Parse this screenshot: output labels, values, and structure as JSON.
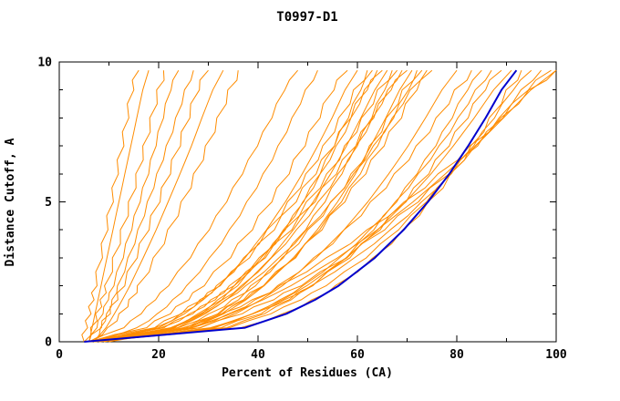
{
  "title": "T0997-D1",
  "colors": {
    "model_line": "#FF8C00",
    "highlight_line": "#0000CD",
    "axis": "#000000",
    "background": "#FFFFFF"
  },
  "chart_data": {
    "type": "line",
    "title": "T0997-D1",
    "xlabel": "Percent of Residues (CA)",
    "ylabel": "Distance Cutoff, A",
    "xlim": [
      0,
      100
    ],
    "ylim": [
      0,
      10
    ],
    "x_major_ticks": [
      0,
      20,
      40,
      60,
      80,
      100
    ],
    "x_minor_step": 10,
    "y_major_ticks": [
      0,
      5,
      10
    ],
    "y_minor_step": 1,
    "grid": false,
    "legend": "none",
    "cutoffs": [
      0,
      0.5,
      1,
      1.5,
      2,
      3,
      4,
      5,
      6,
      7,
      8,
      9,
      9.7
    ],
    "series": [
      {
        "name": "m01",
        "color": "#FF8C00",
        "x": [
          5,
          5.7,
          6.4,
          7,
          7.6,
          8.7,
          9.8,
          10.9,
          11.9,
          13,
          14,
          15,
          16
        ]
      },
      {
        "name": "m02",
        "color": "#FF8C00",
        "x": [
          6,
          6.6,
          7.2,
          7.8,
          8.4,
          9.6,
          10.8,
          12,
          13.2,
          14.4,
          15.6,
          16.8,
          18
        ]
      },
      {
        "name": "m03",
        "color": "#FF8C00",
        "x": [
          5,
          6.3,
          7.3,
          8.2,
          9.1,
          10.7,
          12.3,
          13.9,
          15.4,
          16.8,
          18.2,
          19.6,
          21
        ]
      },
      {
        "name": "m04",
        "color": "#FF8C00",
        "x": [
          6,
          7.6,
          8.8,
          9.9,
          11,
          12.9,
          14.6,
          16.3,
          18,
          19.5,
          21,
          22.5,
          24
        ]
      },
      {
        "name": "m05",
        "color": "#FF8C00",
        "x": [
          7,
          8.3,
          9.5,
          10.6,
          11.7,
          13.8,
          15.8,
          17.7,
          19.6,
          21.5,
          23.4,
          25.2,
          27
        ]
      },
      {
        "name": "m06",
        "color": "#FF8C00",
        "x": [
          6,
          8.5,
          10.3,
          11.8,
          13.2,
          15.7,
          18.1,
          20.3,
          22.4,
          24.4,
          26.3,
          28.2,
          30
        ]
      },
      {
        "name": "m07",
        "color": "#FF8C00",
        "x": [
          7,
          9.4,
          11.1,
          12.7,
          14.2,
          16.9,
          19.5,
          21.9,
          24.3,
          26.6,
          28.7,
          30.9,
          33
        ]
      },
      {
        "name": "m08",
        "color": "#FF8C00",
        "x": [
          6,
          9.7,
          12,
          14,
          15.7,
          18.9,
          21.8,
          24.5,
          27,
          29.4,
          31.7,
          33.9,
          36
        ]
      },
      {
        "name": "m09",
        "color": "#FF8C00",
        "x": [
          6,
          13,
          16.5,
          19.4,
          22,
          26.4,
          30.2,
          33.7,
          36.9,
          39.9,
          42.8,
          45.4,
          48
        ]
      },
      {
        "name": "m10",
        "color": "#FF8C00",
        "x": [
          7,
          15.6,
          19.7,
          22.8,
          25.6,
          30.2,
          34.2,
          37.7,
          41,
          44,
          46.8,
          49.5,
          52
        ]
      },
      {
        "name": "m11",
        "color": "#FF8C00",
        "x": [
          6,
          17.6,
          22.4,
          26.1,
          29.2,
          34.5,
          38.9,
          42.8,
          46.3,
          49.5,
          52.5,
          55.3,
          58
        ]
      },
      {
        "name": "m12",
        "color": "#FF8C00",
        "x": [
          6,
          20,
          25.2,
          29,
          32.2,
          37.4,
          41.7,
          45.5,
          48.9,
          52,
          54.9,
          57.5,
          60
        ]
      },
      {
        "name": "m13",
        "color": "#FF8C00",
        "x": [
          7,
          19.3,
          24.4,
          28.3,
          31.6,
          37.1,
          41.8,
          45.9,
          49.6,
          53,
          56.2,
          59.2,
          62
        ]
      },
      {
        "name": "m14",
        "color": "#FF8C00",
        "x": [
          6,
          23.2,
          28.7,
          32.7,
          35.9,
          41.2,
          45.5,
          49.2,
          52.5,
          55.4,
          58.2,
          60.7,
          63
        ]
      },
      {
        "name": "m15",
        "color": "#FF8C00",
        "x": [
          8,
          22.6,
          27.9,
          31.9,
          35.2,
          40.6,
          45.1,
          49,
          52.5,
          55.7,
          58.7,
          61.4,
          64
        ]
      },
      {
        "name": "m16",
        "color": "#FF8C00",
        "x": [
          6,
          19.2,
          24.6,
          28.8,
          32.4,
          38.3,
          43.3,
          47.7,
          51.7,
          55.4,
          58.7,
          62,
          65
        ]
      },
      {
        "name": "m17",
        "color": "#FF8C00",
        "x": [
          7,
          23.8,
          29.4,
          33.6,
          37,
          42.6,
          47.1,
          51.1,
          54.6,
          57.8,
          60.7,
          63.5,
          66
        ]
      },
      {
        "name": "m18",
        "color": "#FF8C00",
        "x": [
          6,
          20.5,
          26.2,
          30.5,
          34.2,
          40.2,
          45.3,
          49.7,
          53.8,
          57.4,
          60.8,
          64,
          67
        ]
      },
      {
        "name": "m19",
        "color": "#FF8C00",
        "x": [
          8,
          26.1,
          31.9,
          36.1,
          39.5,
          45.1,
          49.6,
          53.5,
          56.9,
          60,
          62.9,
          65.5,
          68
        ]
      },
      {
        "name": "m20",
        "color": "#FF8C00",
        "x": [
          6,
          22.4,
          28.4,
          32.8,
          36.6,
          42.7,
          47.7,
          52.1,
          56.1,
          59.7,
          63,
          66.1,
          69
        ]
      },
      {
        "name": "m21",
        "color": "#FF8C00",
        "x": [
          7,
          21.1,
          26.9,
          31.4,
          35.2,
          41.5,
          46.8,
          51.5,
          55.8,
          59.7,
          63.3,
          66.8,
          70
        ]
      },
      {
        "name": "m22",
        "color": "#FF8C00",
        "x": [
          6,
          26.8,
          33.1,
          37.6,
          41.2,
          47.1,
          51.9,
          56,
          59.6,
          62.7,
          65.7,
          68.5,
          71
        ]
      },
      {
        "name": "m23",
        "color": "#FF8C00",
        "x": [
          7,
          23.9,
          30.1,
          34.7,
          38.5,
          44.8,
          50,
          54.6,
          58.7,
          62.4,
          65.8,
          69,
          72
        ]
      },
      {
        "name": "m24",
        "color": "#FF8C00",
        "x": [
          6,
          26.2,
          32.7,
          37.4,
          41.2,
          47.4,
          52.4,
          56.8,
          60.6,
          64.1,
          67.3,
          70.3,
          73
        ]
      },
      {
        "name": "m25",
        "color": "#FF8C00",
        "x": [
          8,
          22.8,
          28.9,
          33.5,
          37.5,
          44.2,
          49.7,
          54.7,
          59.2,
          63.2,
          67,
          70.6,
          74
        ]
      },
      {
        "name": "m26",
        "color": "#FF8C00",
        "x": [
          6,
          25.6,
          32.2,
          37.1,
          41.1,
          47.6,
          52.9,
          57.5,
          61.7,
          65.4,
          68.9,
          72,
          75
        ]
      },
      {
        "name": "m27",
        "color": "#FF8C00",
        "x": [
          6,
          28.3,
          35.5,
          40.6,
          44.9,
          51.7,
          57.3,
          62.1,
          66.3,
          70.2,
          73.7,
          77,
          80
        ]
      },
      {
        "name": "m28",
        "color": "#FF8C00",
        "x": [
          7,
          26.8,
          34,
          39.4,
          43.9,
          51.2,
          57.3,
          62.6,
          67.4,
          71.8,
          75.8,
          79.5,
          83
        ]
      },
      {
        "name": "m29",
        "color": "#FF8C00",
        "x": [
          6,
          33.7,
          41.3,
          46.7,
          51,
          57.8,
          63.3,
          67.9,
          72,
          75.8,
          79.1,
          82.2,
          85
        ]
      },
      {
        "name": "m30",
        "color": "#FF8C00",
        "x": [
          7,
          31.2,
          38.8,
          44.4,
          49,
          56.4,
          62.4,
          67.6,
          72.2,
          76.4,
          80.2,
          83.7,
          87
        ]
      },
      {
        "name": "m31",
        "color": "#FF8C00",
        "x": [
          6,
          32.6,
          40.6,
          46.3,
          51,
          58.5,
          64.6,
          69.8,
          74.4,
          78.5,
          82.3,
          85.8,
          89
        ]
      },
      {
        "name": "m32",
        "color": "#FF8C00",
        "x": [
          7,
          30.9,
          38.9,
          44.9,
          49.8,
          57.7,
          64.1,
          69.7,
          74.8,
          79.3,
          83.5,
          87.4,
          91
        ]
      },
      {
        "name": "m33",
        "color": "#FF8C00",
        "x": [
          6,
          36.5,
          44.9,
          50.8,
          55.5,
          63.1,
          69.1,
          74.2,
          78.7,
          82.8,
          86.5,
          89.9,
          93
        ]
      },
      {
        "name": "m34",
        "color": "#FF8C00",
        "x": [
          8,
          34.3,
          42.6,
          48.7,
          53.7,
          61.8,
          68.3,
          73.9,
          78.9,
          83.4,
          87.6,
          91.4,
          95
        ]
      },
      {
        "name": "m35",
        "color": "#FF8C00",
        "x": [
          7,
          30.4,
          39,
          45.3,
          50.7,
          59.4,
          66.6,
          72.9,
          78.6,
          83.7,
          88.5,
          92.9,
          97
        ]
      },
      {
        "name": "m36",
        "color": "#FF8C00",
        "x": [
          8,
          28.4,
          36.8,
          43.2,
          48.7,
          57.9,
          65.5,
          72.3,
          78.5,
          84.2,
          89.3,
          94.4,
          99
        ]
      },
      {
        "name": "m37",
        "color": "#FF8C00",
        "x": [
          9,
          26.5,
          34.7,
          41,
          46.6,
          56,
          64,
          71.2,
          77.7,
          83.8,
          89.4,
          94.9,
          100
        ]
      },
      {
        "name": "m38",
        "color": "#FF8C00",
        "x": [
          10,
          24.9,
          32.6,
          38.8,
          44.3,
          53.7,
          61.9,
          69.4,
          76.2,
          82.6,
          88.8,
          94.5,
          100
        ]
      },
      {
        "name": "highlight",
        "color": "#0000CD",
        "width": 2,
        "x": [
          5,
          37.4,
          45.7,
          51.5,
          56.2,
          63.5,
          69.3,
          74.2,
          78.5,
          82.3,
          85.8,
          89,
          92
        ]
      }
    ]
  }
}
